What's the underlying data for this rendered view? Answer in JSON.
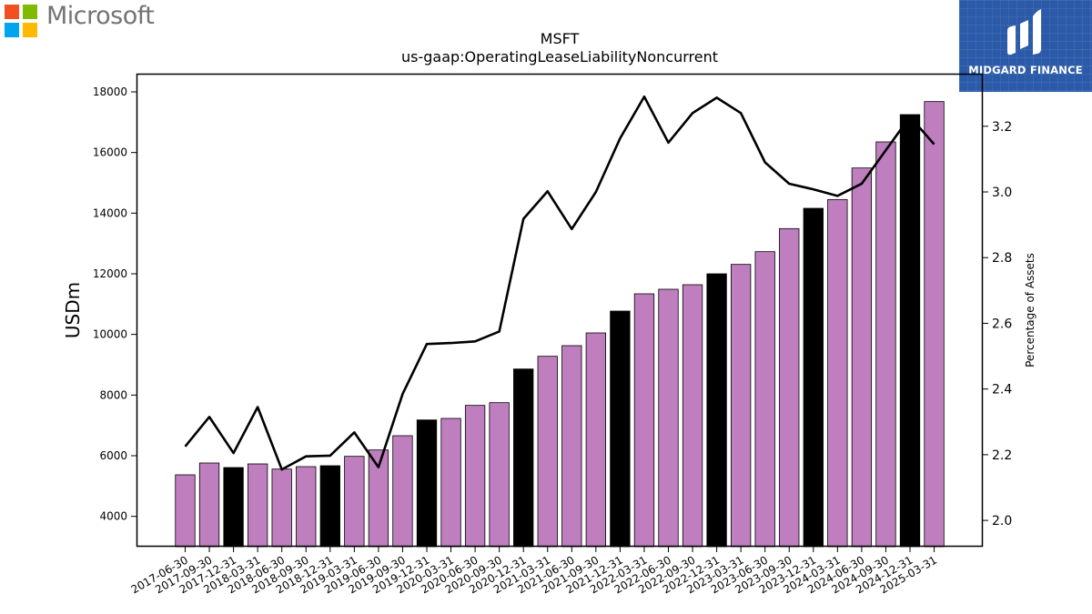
{
  "branding": {
    "company_name": "Microsoft",
    "ms_colors": [
      "#f25022",
      "#7fba00",
      "#00a4ef",
      "#ffb900"
    ],
    "publisher_name": "MIDGARD FINANCE",
    "publisher_color": "#2b5aa8"
  },
  "chart_data": {
    "type": "bar",
    "title": "MSFT",
    "subtitle": "us-gaap:OperatingLeaseLiabilityNoncurrent",
    "ylabel": "USDm",
    "y2label": "Percentage of Assets",
    "ylim": [
      3000,
      18600
    ],
    "y2lim": [
      1.92,
      3.36
    ],
    "yticks": [
      4000,
      6000,
      8000,
      10000,
      12000,
      14000,
      16000,
      18000
    ],
    "y2ticks": [
      2.0,
      2.2,
      2.4,
      2.6,
      2.8,
      3.0,
      3.2
    ],
    "bar_color": "#bf7fbf",
    "highlight_color": "#000000",
    "line_color": "#000000",
    "categories": [
      "2017-06-30",
      "2017-09-30",
      "2017-12-31",
      "2018-03-31",
      "2018-06-30",
      "2018-09-30",
      "2018-12-31",
      "2019-03-31",
      "2019-06-30",
      "2019-09-30",
      "2019-12-31",
      "2020-03-31",
      "2020-06-30",
      "2020-09-30",
      "2020-12-31",
      "2021-03-31",
      "2021-06-30",
      "2021-09-30",
      "2021-12-31",
      "2022-03-31",
      "2022-06-30",
      "2022-09-30",
      "2022-12-31",
      "2023-03-31",
      "2023-06-30",
      "2023-09-30",
      "2023-12-31",
      "2024-03-31",
      "2024-06-30",
      "2024-09-30",
      "2024-12-31",
      "2025-03-31"
    ],
    "series": [
      {
        "kind": "bar",
        "axis": "left",
        "values": [
          5370,
          5760,
          5610,
          5730,
          5560,
          5640,
          5670,
          5980,
          6190,
          6660,
          7180,
          7230,
          7660,
          7750,
          8860,
          9280,
          9630,
          10050,
          10770,
          11340,
          11490,
          11640,
          12000,
          12310,
          12730,
          13490,
          14160,
          14450,
          15490,
          16350,
          17250,
          17680
        ],
        "highlight": [
          false,
          false,
          true,
          false,
          false,
          false,
          true,
          false,
          false,
          false,
          true,
          false,
          false,
          false,
          true,
          false,
          false,
          false,
          true,
          false,
          false,
          false,
          true,
          false,
          false,
          false,
          true,
          false,
          false,
          false,
          true,
          false
        ]
      },
      {
        "kind": "line",
        "axis": "right",
        "values": [
          2.225,
          2.315,
          2.205,
          2.345,
          2.155,
          2.195,
          2.197,
          2.268,
          2.162,
          2.385,
          2.537,
          2.54,
          2.545,
          2.575,
          2.918,
          3.002,
          2.887,
          3.0,
          3.163,
          3.29,
          3.15,
          3.24,
          3.287,
          3.24,
          3.09,
          3.025,
          3.008,
          2.988,
          3.025,
          3.127,
          3.229,
          3.145
        ]
      }
    ]
  }
}
